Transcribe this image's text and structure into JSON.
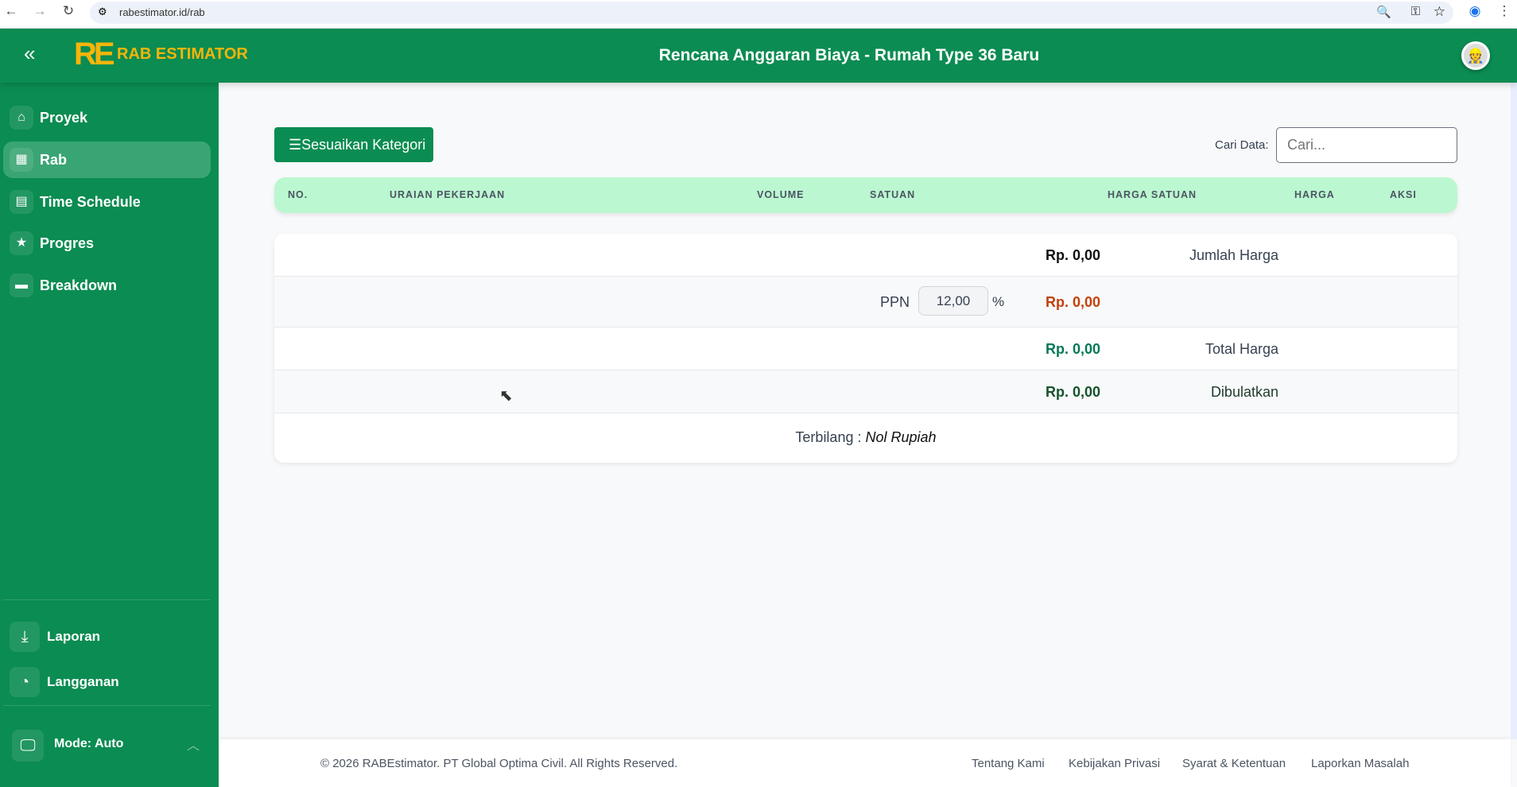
{
  "browser": {
    "url": "rabestimator.id/rab"
  },
  "header": {
    "brand": "RAB ESTIMATOR",
    "logo": "RE",
    "title": "Rencana Anggaran Biaya - Rumah Type 36 Baru"
  },
  "sidebar": {
    "items": [
      {
        "label": "Proyek",
        "icon": "home-icon"
      },
      {
        "label": "Rab",
        "icon": "grid-icon",
        "active": true
      },
      {
        "label": "Time Schedule",
        "icon": "calendar-icon"
      },
      {
        "label": "Progres",
        "icon": "star-icon"
      },
      {
        "label": "Breakdown",
        "icon": "archive-icon"
      }
    ],
    "bottom": [
      {
        "label": "Laporan",
        "icon": "download-icon"
      },
      {
        "label": "Langganan",
        "icon": "clock-icon"
      }
    ],
    "mode": "Mode: Auto"
  },
  "toolbar": {
    "customize": "Sesuaikan Kategori",
    "search_label": "Cari Data:",
    "search_placeholder": "Cari..."
  },
  "table": {
    "columns": [
      "NO.",
      "URAIAN PEKERJAAN",
      "VOLUME",
      "SATUAN",
      "HARGA SATUAN",
      "HARGA",
      "AKSI"
    ]
  },
  "summary": {
    "jumlah_label": "Jumlah Harga",
    "jumlah_value": "Rp. 0,00",
    "ppn_label": "PPN",
    "ppn_rate": "12,00",
    "ppn_unit": "%",
    "ppn_value": "Rp. 0,00",
    "total_label": "Total Harga",
    "total_value": "Rp. 0,00",
    "rounded_label": "Dibulatkan",
    "rounded_value": "Rp. 0,00",
    "terbilang_label": "Terbilang :",
    "terbilang_value": "Nol Rupiah"
  },
  "footer": {
    "copyright": "© 2026 RABEstimator. PT Global Optima Civil. All Rights Reserved.",
    "links": [
      "Tentang Kami",
      "Kebijakan Privasi",
      "Syarat & Ketentuan",
      "Laporkan Masalah"
    ]
  },
  "colors": {
    "primary": "#0b8c52",
    "accent": "#f5b50a",
    "table_header": "#bbf7d0",
    "ppn_value": "#c2410c",
    "total_value": "#047857"
  }
}
